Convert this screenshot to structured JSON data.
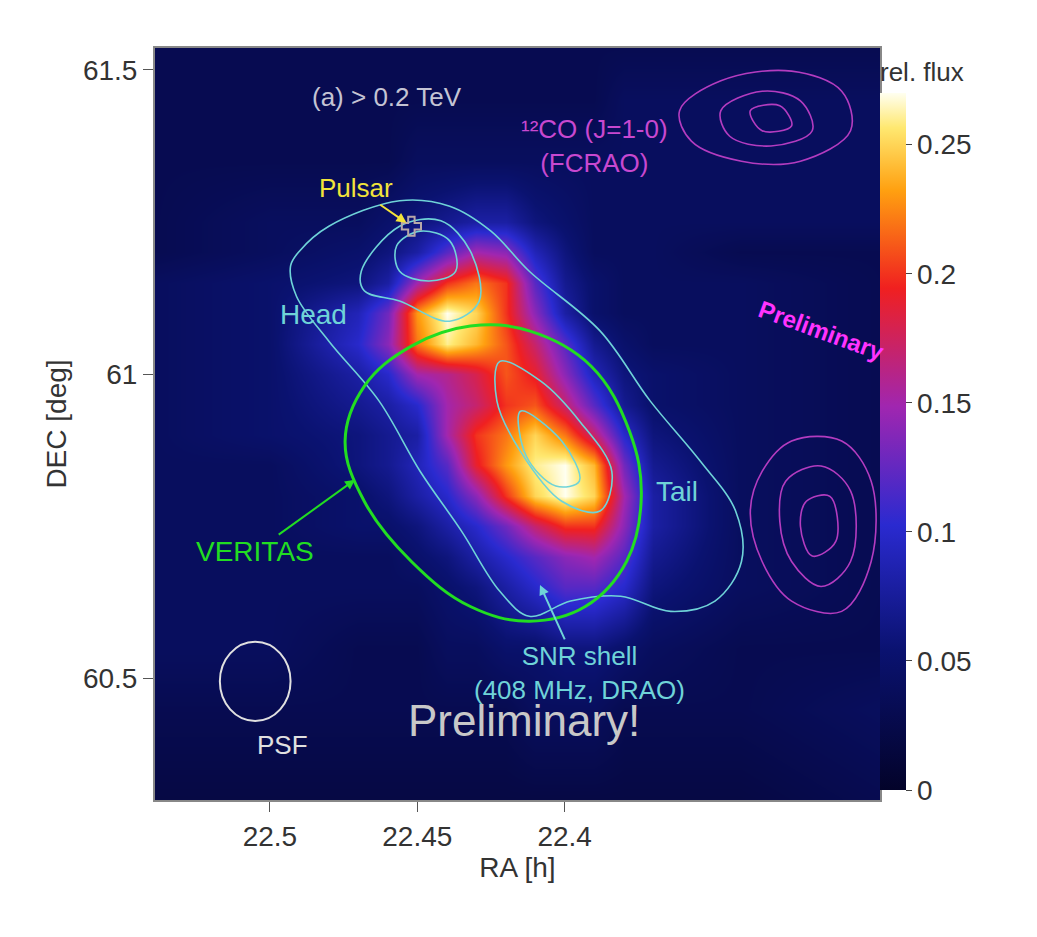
{
  "chart_data": {
    "type": "heatmap",
    "panel_label": "(a) > 0.2 TeV",
    "x_label": "RA [h]",
    "y_label": "DEC [deg]",
    "xlim": [
      22.539,
      22.293
    ],
    "xticks": [
      22.5,
      22.45,
      22.4
    ],
    "ylim": [
      60.3,
      61.536
    ],
    "yticks": [
      60.5,
      61,
      61.5
    ],
    "colorbar_title": "rel. flux",
    "zlim": [
      0,
      0.27
    ],
    "zticks": [
      0,
      0.05,
      0.1,
      0.15,
      0.2,
      0.25
    ],
    "x": [
      22.54,
      22.5,
      22.47,
      22.46,
      22.45,
      22.44,
      22.43,
      22.42,
      22.41,
      22.4,
      22.39,
      22.38,
      22.37,
      22.34,
      22.29
    ],
    "y": [
      60.3,
      60.45,
      60.55,
      60.65,
      60.7,
      60.75,
      60.8,
      60.85,
      60.9,
      60.95,
      61.0,
      61.05,
      61.1,
      61.15,
      61.2,
      61.25,
      61.35,
      61.45,
      61.54
    ],
    "z": [
      [
        0.02,
        0.02,
        0.02,
        0.02,
        0.02,
        0.02,
        0.02,
        0.02,
        0.02,
        0.02,
        0.02,
        0.02,
        0.02,
        0.02,
        0.03
      ],
      [
        0.03,
        0.03,
        0.03,
        0.03,
        0.03,
        0.03,
        0.03,
        0.03,
        0.04,
        0.04,
        0.04,
        0.03,
        0.03,
        0.03,
        0.04
      ],
      [
        0.04,
        0.04,
        0.03,
        0.03,
        0.03,
        0.04,
        0.04,
        0.05,
        0.05,
        0.06,
        0.06,
        0.05,
        0.04,
        0.03,
        0.03
      ],
      [
        0.04,
        0.04,
        0.04,
        0.04,
        0.04,
        0.05,
        0.06,
        0.08,
        0.1,
        0.12,
        0.12,
        0.1,
        0.06,
        0.04,
        0.03
      ],
      [
        0.04,
        0.04,
        0.04,
        0.04,
        0.05,
        0.06,
        0.08,
        0.1,
        0.12,
        0.14,
        0.15,
        0.12,
        0.07,
        0.04,
        0.03
      ],
      [
        0.04,
        0.04,
        0.05,
        0.05,
        0.06,
        0.08,
        0.1,
        0.13,
        0.17,
        0.2,
        0.2,
        0.14,
        0.08,
        0.04,
        0.03
      ],
      [
        0.04,
        0.04,
        0.05,
        0.06,
        0.08,
        0.1,
        0.14,
        0.2,
        0.25,
        0.27,
        0.25,
        0.15,
        0.08,
        0.04,
        0.03
      ],
      [
        0.04,
        0.04,
        0.06,
        0.07,
        0.09,
        0.12,
        0.19,
        0.23,
        0.26,
        0.27,
        0.24,
        0.13,
        0.07,
        0.04,
        0.03
      ],
      [
        0.04,
        0.05,
        0.06,
        0.07,
        0.08,
        0.15,
        0.2,
        0.22,
        0.25,
        0.22,
        0.17,
        0.1,
        0.06,
        0.04,
        0.03
      ],
      [
        0.04,
        0.05,
        0.07,
        0.08,
        0.1,
        0.15,
        0.17,
        0.2,
        0.21,
        0.17,
        0.12,
        0.07,
        0.05,
        0.04,
        0.03
      ],
      [
        0.04,
        0.05,
        0.08,
        0.1,
        0.15,
        0.16,
        0.18,
        0.21,
        0.19,
        0.14,
        0.09,
        0.06,
        0.05,
        0.04,
        0.03
      ],
      [
        0.04,
        0.05,
        0.1,
        0.14,
        0.22,
        0.26,
        0.24,
        0.21,
        0.17,
        0.12,
        0.07,
        0.05,
        0.04,
        0.04,
        0.03
      ],
      [
        0.04,
        0.05,
        0.09,
        0.13,
        0.23,
        0.27,
        0.25,
        0.2,
        0.14,
        0.08,
        0.05,
        0.04,
        0.04,
        0.04,
        0.03
      ],
      [
        0.04,
        0.05,
        0.06,
        0.08,
        0.15,
        0.2,
        0.22,
        0.2,
        0.12,
        0.07,
        0.05,
        0.04,
        0.04,
        0.04,
        0.03
      ],
      [
        0.03,
        0.04,
        0.05,
        0.06,
        0.08,
        0.12,
        0.15,
        0.14,
        0.09,
        0.06,
        0.04,
        0.04,
        0.04,
        0.03,
        0.03
      ],
      [
        0.03,
        0.04,
        0.04,
        0.05,
        0.06,
        0.07,
        0.08,
        0.08,
        0.06,
        0.05,
        0.04,
        0.04,
        0.04,
        0.04,
        0.04
      ],
      [
        0.03,
        0.03,
        0.03,
        0.03,
        0.04,
        0.04,
        0.04,
        0.04,
        0.04,
        0.04,
        0.04,
        0.04,
        0.04,
        0.04,
        0.04
      ],
      [
        0.03,
        0.03,
        0.03,
        0.03,
        0.03,
        0.03,
        0.03,
        0.03,
        0.03,
        0.03,
        0.03,
        0.04,
        0.04,
        0.04,
        0.04
      ],
      [
        0.03,
        0.03,
        0.03,
        0.03,
        0.03,
        0.03,
        0.03,
        0.03,
        0.03,
        0.03,
        0.03,
        0.03,
        0.03,
        0.03,
        0.03
      ]
    ],
    "radio_contours": {
      "label": [
        "SNR shell",
        "(408 MHz, DRAO)"
      ],
      "color": "#6fd3d8",
      "paths": [
        [
          [
            22.49,
            61.202
          ],
          [
            22.48,
            61.243
          ],
          [
            22.456,
            61.285
          ],
          [
            22.439,
            61.276
          ],
          [
            22.425,
            61.235
          ],
          [
            22.412,
            61.169
          ],
          [
            22.388,
            61.071
          ],
          [
            22.371,
            60.956
          ],
          [
            22.354,
            60.857
          ],
          [
            22.342,
            60.775
          ],
          [
            22.34,
            60.692
          ],
          [
            22.349,
            60.627
          ],
          [
            22.364,
            60.61
          ],
          [
            22.381,
            60.635
          ],
          [
            22.398,
            60.627
          ],
          [
            22.412,
            60.602
          ],
          [
            22.422,
            60.643
          ],
          [
            22.435,
            60.742
          ],
          [
            22.449,
            60.84
          ],
          [
            22.463,
            60.956
          ],
          [
            22.48,
            61.054
          ],
          [
            22.491,
            61.128
          ],
          [
            22.493,
            61.178
          ]
        ],
        [
          [
            22.469,
            61.169
          ],
          [
            22.456,
            61.243
          ],
          [
            22.442,
            61.252
          ],
          [
            22.432,
            61.202
          ],
          [
            22.429,
            61.12
          ],
          [
            22.439,
            61.087
          ],
          [
            22.456,
            61.12
          ],
          [
            22.468,
            61.137
          ]
        ],
        [
          [
            22.457,
            61.211
          ],
          [
            22.449,
            61.235
          ],
          [
            22.439,
            61.219
          ],
          [
            22.437,
            61.169
          ],
          [
            22.446,
            61.153
          ],
          [
            22.456,
            61.169
          ]
        ],
        [
          [
            22.422,
            61.021
          ],
          [
            22.408,
            60.988
          ],
          [
            22.395,
            60.923
          ],
          [
            22.384,
            60.84
          ],
          [
            22.388,
            60.775
          ],
          [
            22.401,
            60.791
          ],
          [
            22.415,
            60.873
          ],
          [
            22.423,
            60.956
          ]
        ],
        [
          [
            22.415,
            60.939
          ],
          [
            22.401,
            60.89
          ],
          [
            22.395,
            60.824
          ],
          [
            22.403,
            60.816
          ],
          [
            22.413,
            60.865
          ]
        ]
      ]
    },
    "co_contours": {
      "label": [
        "¹²CO (J=1-0)",
        "(FCRAO)"
      ],
      "color": "#b43cc0",
      "paths": [
        [
          [
            22.361,
            61.433
          ],
          [
            22.347,
            61.482
          ],
          [
            22.323,
            61.498
          ],
          [
            22.306,
            61.465
          ],
          [
            22.303,
            61.4
          ],
          [
            22.32,
            61.35
          ],
          [
            22.34,
            61.35
          ],
          [
            22.357,
            61.383
          ]
        ],
        [
          [
            22.347,
            61.433
          ],
          [
            22.333,
            61.465
          ],
          [
            22.32,
            61.449
          ],
          [
            22.316,
            61.4
          ],
          [
            22.33,
            61.375
          ],
          [
            22.344,
            61.391
          ]
        ],
        [
          [
            22.337,
            61.433
          ],
          [
            22.327,
            61.441
          ],
          [
            22.323,
            61.408
          ],
          [
            22.333,
            61.4
          ]
        ],
        [
          [
            22.333,
            60.84
          ],
          [
            22.323,
            60.89
          ],
          [
            22.306,
            60.89
          ],
          [
            22.296,
            60.824
          ],
          [
            22.296,
            60.692
          ],
          [
            22.306,
            60.61
          ],
          [
            22.323,
            60.627
          ],
          [
            22.333,
            60.692
          ],
          [
            22.337,
            60.775
          ]
        ],
        [
          [
            22.325,
            60.824
          ],
          [
            22.313,
            60.849
          ],
          [
            22.303,
            60.808
          ],
          [
            22.303,
            60.692
          ],
          [
            22.313,
            60.651
          ],
          [
            22.323,
            60.692
          ],
          [
            22.327,
            60.758
          ]
        ],
        [
          [
            22.318,
            60.791
          ],
          [
            22.31,
            60.799
          ],
          [
            22.308,
            60.725
          ],
          [
            22.316,
            60.701
          ],
          [
            22.32,
            60.75
          ]
        ]
      ]
    },
    "veritas": {
      "label": "VERITAS",
      "color": "#22dd22",
      "path": [
        [
          22.4745,
          60.89
        ],
        [
          22.468,
          60.98
        ],
        [
          22.452,
          61.046
        ],
        [
          22.432,
          61.079
        ],
        [
          22.412,
          61.071
        ],
        [
          22.391,
          61.013
        ],
        [
          22.378,
          60.906
        ],
        [
          22.374,
          60.799
        ],
        [
          22.379,
          60.692
        ],
        [
          22.393,
          60.618
        ],
        [
          22.412,
          60.594
        ],
        [
          22.432,
          60.618
        ],
        [
          22.452,
          60.692
        ],
        [
          22.468,
          60.791
        ]
      ]
    },
    "pulsar": {
      "label": "Pulsar",
      "ra": 22.452,
      "dec": 61.243,
      "color": "#f2e33a"
    },
    "psf": {
      "label": "PSF",
      "ra": 22.505,
      "dec": 60.495,
      "radius_ra": 0.012,
      "radius_dec": 0.065
    },
    "region_labels": [
      "Head",
      "Tail"
    ],
    "watermarks": [
      "Preliminary!",
      "Preliminary"
    ]
  }
}
